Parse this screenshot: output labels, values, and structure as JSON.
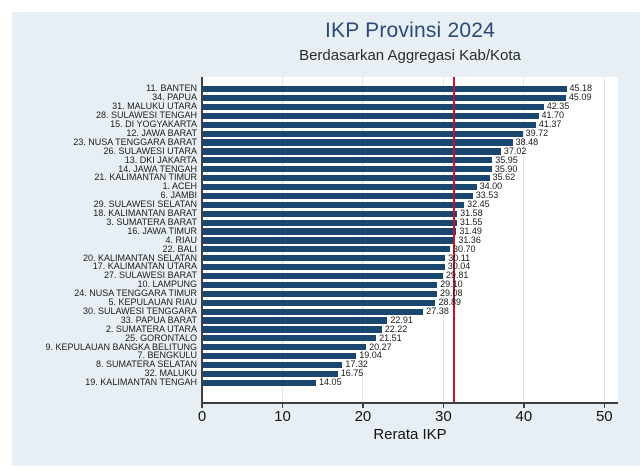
{
  "figure": {
    "title": "IKP Provinsi 2024",
    "subtitle": "Berdasarkan Aggregasi Kab/Kota",
    "xlabel": "Rerata IKP",
    "colors": {
      "canvas_background": "#e8eff4",
      "plot_background": "#ffffff",
      "bar": "#1a476f",
      "reference_line": "#c41430",
      "gridline": "#dce6ed",
      "axis": "#404040",
      "title_text": "#2c4a79",
      "subtitle_text": "#2a2a2a",
      "label_text": "#1a1a1a"
    }
  },
  "chart_data": {
    "type": "bar",
    "orientation": "horizontal",
    "title": "IKP Provinsi 2024",
    "subtitle": "Berdasarkan Aggregasi Kab/Kota",
    "xlabel": "Rerata IKP",
    "xlim": [
      0,
      51.7
    ],
    "xticks": [
      0,
      10,
      20,
      30,
      40,
      50
    ],
    "grid": true,
    "legend": "none",
    "reference_line_x": 31.3,
    "categories": [
      "11. BANTEN",
      "34. PAPUA",
      "31. MALUKU UTARA",
      "28. SULAWESI TENGAH",
      "15. DI YOGYAKARTA",
      "12. JAWA BARAT",
      "23. NUSA TENGGARA BARAT",
      "26. SULAWESI UTARA",
      "13. DKI JAKARTA",
      "14. JAWA TENGAH",
      "21. KALIMANTAN TIMUR",
      "1. ACEH",
      "6. JAMBI",
      "29. SULAWESI SELATAN",
      "18. KALIMANTAN BARAT",
      "3. SUMATERA BARAT",
      "16. JAWA TIMUR",
      "4. RIAU",
      "22. BALI",
      "20. KALIMANTAN SELATAN",
      "17. KALIMANTAN UTARA",
      "27. SULAWESI BARAT",
      "10. LAMPUNG",
      "24. NUSA TENGGARA TIMUR",
      "5. KEPULAUAN RIAU",
      "30. SULAWESI TENGGARA",
      "33. PAPUA BARAT",
      "2. SUMATERA UTARA",
      "25. GORONTALO",
      "9. KEPULAUAN BANGKA BELITUNG",
      "7. BENGKULU",
      "8. SUMATERA SELATAN",
      "32. MALUKU",
      "19. KALIMANTAN TENGAH"
    ],
    "values": [
      45.18,
      45.09,
      42.35,
      41.7,
      41.37,
      39.72,
      38.48,
      37.02,
      35.95,
      35.9,
      35.62,
      34.0,
      33.53,
      32.45,
      31.58,
      31.55,
      31.49,
      31.36,
      30.7,
      30.11,
      30.04,
      29.81,
      29.1,
      29.08,
      28.89,
      27.38,
      22.91,
      22.22,
      21.51,
      20.27,
      19.04,
      17.32,
      16.75,
      14.05
    ]
  }
}
